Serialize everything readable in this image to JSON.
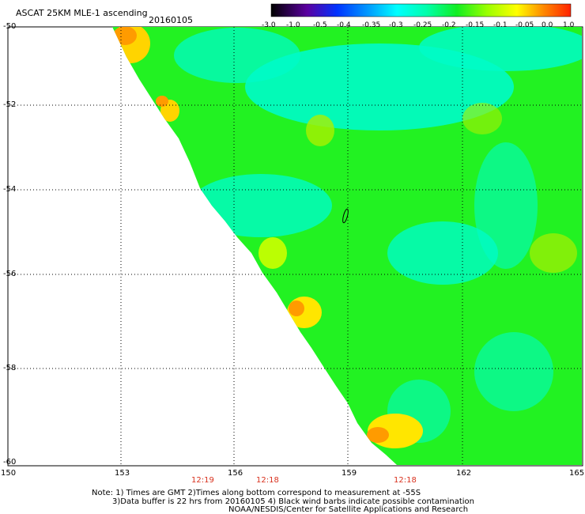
{
  "header": {
    "title": "ASCAT 25KM MLE-1 ascending",
    "date": "20160105"
  },
  "colorbar": {
    "labels": [
      "-3.0",
      "-1.0",
      "-0.5",
      "-0.4",
      "-0.35",
      "-0.3",
      "-0.25",
      "-0.2",
      "-0.15",
      "-0.1",
      "-0.05",
      "0.0",
      "1.0"
    ]
  },
  "axes": {
    "lat_labels": [
      "-50",
      "-52",
      "-54",
      "-56",
      "-58",
      "-60"
    ],
    "lon_labels": [
      "150",
      "153",
      "156",
      "159",
      "162",
      "165"
    ],
    "times": [
      "12:19",
      "12:18",
      "12:18"
    ]
  },
  "footer": {
    "line1": "Note: 1) Times are GMT 2)Times along bottom correspond to measurement at -55S",
    "line2": "3)Data buffer is 22 hrs from 20160105 4) Black wind barbs indicate possible contamination",
    "line3": "NOAA/NESDIS/Center for Satellite Applications and Research"
  },
  "colors": {
    "field_main": "#22f222",
    "field_cyan": "#00ffd0",
    "field_yellow": "#f6f600",
    "field_orange": "#ffaa00"
  }
}
